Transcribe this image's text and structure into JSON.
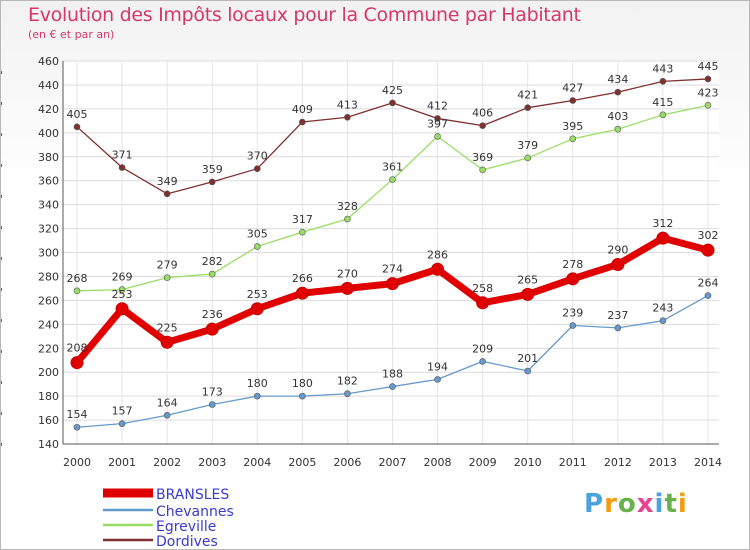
{
  "title": "Evolution des Impôts locaux pour la Commune par Habitant",
  "subtitle": "(en € et par an)",
  "brand": {
    "letters": [
      "P",
      "r",
      "o",
      "x",
      "i",
      "t",
      "i"
    ],
    "colors": [
      "#4aa3df",
      "#f39c12",
      "#6ab04c",
      "#e84393",
      "#4aa3df",
      "#6ab04c",
      "#f39c12"
    ]
  },
  "chart_data": {
    "type": "line",
    "title": "Evolution des Impôts locaux pour la Commune par Habitant",
    "subtitle": "(en € et par an)",
    "xlabel": "",
    "ylabel": "",
    "ylim": [
      140,
      460
    ],
    "yticks": [
      140,
      160,
      180,
      200,
      220,
      240,
      260,
      280,
      300,
      320,
      340,
      360,
      380,
      400,
      420,
      440,
      460
    ],
    "categories": [
      "2000",
      "2001",
      "2002",
      "2003",
      "2004",
      "2005",
      "2006",
      "2007",
      "2008",
      "2009",
      "2010",
      "2011",
      "2012",
      "2013",
      "2014"
    ],
    "grid": true,
    "legend_position": "bottom-left",
    "series": [
      {
        "name": "BRANSLES",
        "color": "#e00000",
        "values": [
          208,
          253,
          225,
          236,
          253,
          266,
          270,
          274,
          286,
          258,
          265,
          278,
          290,
          312,
          302
        ]
      },
      {
        "name": "Chevannes",
        "color": "#6699cc",
        "values": [
          154,
          157,
          164,
          173,
          180,
          180,
          182,
          188,
          194,
          209,
          201,
          239,
          237,
          243,
          264
        ]
      },
      {
        "name": "Egreville",
        "color": "#99dd66",
        "values": [
          268,
          269,
          279,
          282,
          305,
          317,
          328,
          361,
          397,
          369,
          379,
          395,
          403,
          415,
          423
        ]
      },
      {
        "name": "Dordives",
        "color": "#803030",
        "values": [
          405,
          371,
          349,
          359,
          370,
          409,
          413,
          425,
          412,
          406,
          421,
          427,
          434,
          443,
          445
        ]
      }
    ]
  }
}
